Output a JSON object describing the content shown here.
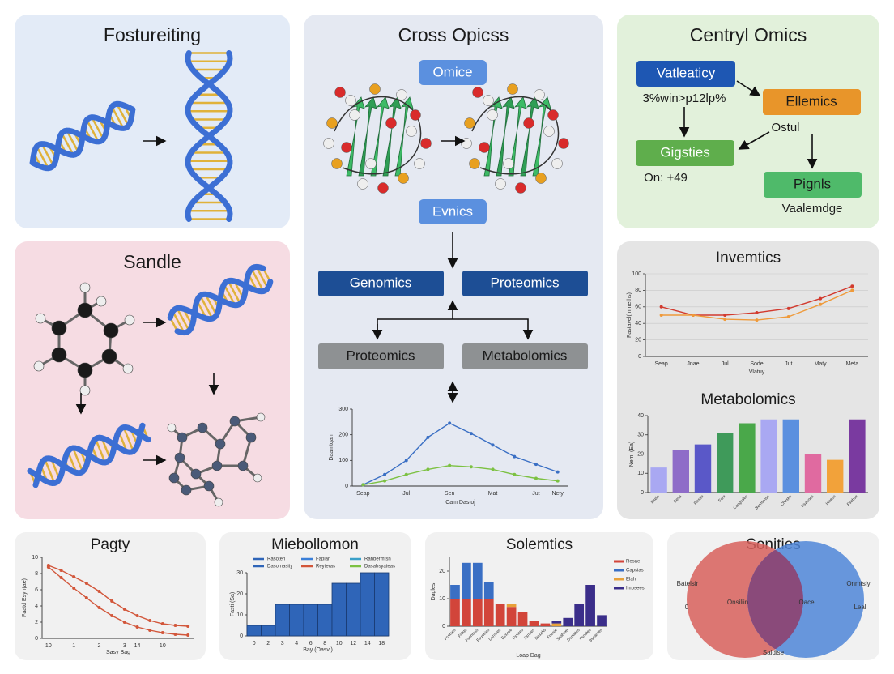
{
  "fostureiting": {
    "title": "Fostureiting"
  },
  "sandle": {
    "title": "Sandle"
  },
  "cross": {
    "title": "Cross Opicss",
    "top_pill": "Omice",
    "mid_pill": "Evnics",
    "boxes": [
      "Genomics",
      "Proteomics",
      "Proteomics",
      "Metabolomics"
    ],
    "chart": {
      "type": "line",
      "ylabel": "Daamtqan",
      "xlabel": "Cam Dastoj",
      "categories": [
        "Seap",
        null,
        "Jul",
        null,
        "Sen",
        null,
        "Mat",
        null,
        "Jut",
        "Nety"
      ],
      "ylim": [
        0,
        300
      ],
      "yticks": [
        0,
        100,
        200,
        300
      ],
      "series": [
        {
          "color": "#3a6fc4",
          "values": [
            5,
            45,
            100,
            190,
            245,
            205,
            160,
            115,
            85,
            55
          ]
        },
        {
          "color": "#7cc142",
          "values": [
            5,
            20,
            45,
            65,
            80,
            75,
            65,
            45,
            30,
            20
          ]
        }
      ]
    }
  },
  "centryl": {
    "title": "Centryl Omics",
    "nodes": [
      "Vatleaticy",
      "Ellemics",
      "Gigsties",
      "Pignls"
    ],
    "notes": [
      "3%win>p12lp%",
      "Ostul",
      "On: +49",
      "Vaalemdge"
    ]
  },
  "invemtics": {
    "title": "Invemtics",
    "chart": {
      "type": "line",
      "ylabel": "Fastavel(mmeths)",
      "xlabel": "Vlatuy",
      "categories": [
        "Seap",
        "Jnae",
        "Jul",
        "Sode",
        "Jut",
        "Maty",
        "Meta"
      ],
      "ylim": [
        0,
        100
      ],
      "yticks": [
        0,
        20,
        40,
        60,
        80,
        100
      ],
      "grid": true,
      "series": [
        {
          "color": "#d23a2e",
          "values": [
            60,
            50,
            50,
            53,
            58,
            70,
            85
          ]
        },
        {
          "color": "#ef9a3a",
          "values": [
            50,
            50,
            45,
            44,
            48,
            63,
            80
          ]
        }
      ]
    }
  },
  "metabolomics": {
    "title": "Metabolomics",
    "chart": {
      "type": "bar",
      "ylabel": "Nemi (Ea)",
      "categories": [
        "Bsele",
        "Besa",
        "Rasde",
        "Fsre",
        "Cengsdes",
        "Bermanse",
        "Chaske",
        "Fsasnes",
        "Inlreso",
        "Fsehse"
      ],
      "values": [
        13,
        22,
        25,
        31,
        36,
        38,
        38,
        20,
        17,
        38
      ],
      "colors": [
        "#a9a8f2",
        "#8e6cc8",
        "#5a58c8",
        "#3f9a5a",
        "#4aa84a",
        "#a9a8f2",
        "#5b90df",
        "#e06aa0",
        "#f2a23a",
        "#7a3aa0"
      ],
      "ylim": [
        0,
        40
      ],
      "yticks": [
        0,
        10,
        20,
        30,
        40
      ]
    }
  },
  "pagty": {
    "title": "Pagty",
    "chart": {
      "type": "line",
      "ylabel": "Faatd Esyn(ae)",
      "xlabel": "Sasy Bag",
      "categories": [
        "10",
        null,
        "1",
        null,
        "2",
        null,
        "3",
        "14",
        null,
        "10",
        null,
        null
      ],
      "ylim": [
        0,
        10
      ],
      "yticks": [
        0,
        2,
        4,
        6,
        8,
        10
      ],
      "series": [
        {
          "color": "#d2563a",
          "values": [
            9,
            8.4,
            7.6,
            6.8,
            5.8,
            4.6,
            3.6,
            2.8,
            2.2,
            1.8,
            1.6,
            1.5
          ]
        },
        {
          "color": "#d2563a",
          "values": [
            8.8,
            7.5,
            6.2,
            5,
            3.8,
            2.8,
            2,
            1.4,
            1,
            0.7,
            0.5,
            0.4
          ]
        }
      ]
    }
  },
  "miebollomon": {
    "title": "Miebollomon",
    "chart": {
      "type": "bar",
      "ylabel": "Fasti (Sa)",
      "xlabel": "Bay (Oasvi)",
      "categories": [
        "0",
        "2",
        "3",
        "4",
        "6",
        "8",
        "10",
        "12",
        "14",
        "18"
      ],
      "values": [
        5,
        5,
        15,
        15,
        15,
        15,
        25,
        25,
        30,
        30
      ],
      "color": "#2f65b8",
      "ylim": [
        0,
        30
      ],
      "yticks": [
        0,
        10,
        20,
        30
      ],
      "legend": [
        {
          "name": "Rasoten",
          "color": "#2f65b8"
        },
        {
          "name": "Faplan",
          "color": "#3a7fd8"
        },
        {
          "name": "Ranbermtsn",
          "color": "#3aa0c8"
        },
        {
          "name": "Dasomasity",
          "color": "#2f65b8"
        },
        {
          "name": "Reyteras",
          "color": "#d2563a"
        },
        {
          "name": "Dasahsyateas",
          "color": "#7cc142"
        }
      ]
    }
  },
  "solemtics": {
    "title": "Solemtics",
    "chart": {
      "type": "stacked_bar",
      "ylabel": "Dagles",
      "xlabel": "Loap Dag",
      "categories": [
        "Fcntses",
        "Fslsts",
        "Fsnntcss",
        "Fsuneies",
        "Dsrnaes",
        "Essnse",
        "Fsnaes",
        "Ssnaes",
        "Dasahs",
        "Fnesie",
        "Ssahuet",
        "Dsmates",
        "Fsnates",
        "Bseantes"
      ],
      "ylim": [
        0,
        25
      ],
      "yticks": [
        0,
        10,
        20
      ],
      "series": [
        {
          "name": "Resae",
          "color": "#d2453a",
          "values": [
            10,
            10,
            10,
            10,
            8,
            7,
            5,
            2,
            1,
            0,
            0,
            0,
            0,
            0
          ]
        },
        {
          "name": "Capsias",
          "color": "#3a6fc4",
          "values": [
            5,
            13,
            13,
            6,
            0,
            0,
            0,
            0,
            0,
            0,
            0,
            0,
            0,
            0
          ]
        },
        {
          "name": "Elah",
          "color": "#e8a13a",
          "values": [
            0,
            0,
            0,
            0,
            0,
            1,
            0,
            0,
            0,
            1,
            0,
            0,
            0,
            0
          ]
        },
        {
          "name": "Impsees",
          "color": "#3b2e8a",
          "values": [
            0,
            0,
            0,
            0,
            0,
            0,
            0,
            0,
            0,
            1,
            3,
            8,
            15,
            4
          ]
        }
      ]
    }
  },
  "sonities": {
    "title": "Sonities",
    "labels": [
      "Batelsir",
      "0",
      "Onsiliin",
      "Oace",
      "Onmtsly",
      "Leal",
      "Saldise"
    ]
  }
}
